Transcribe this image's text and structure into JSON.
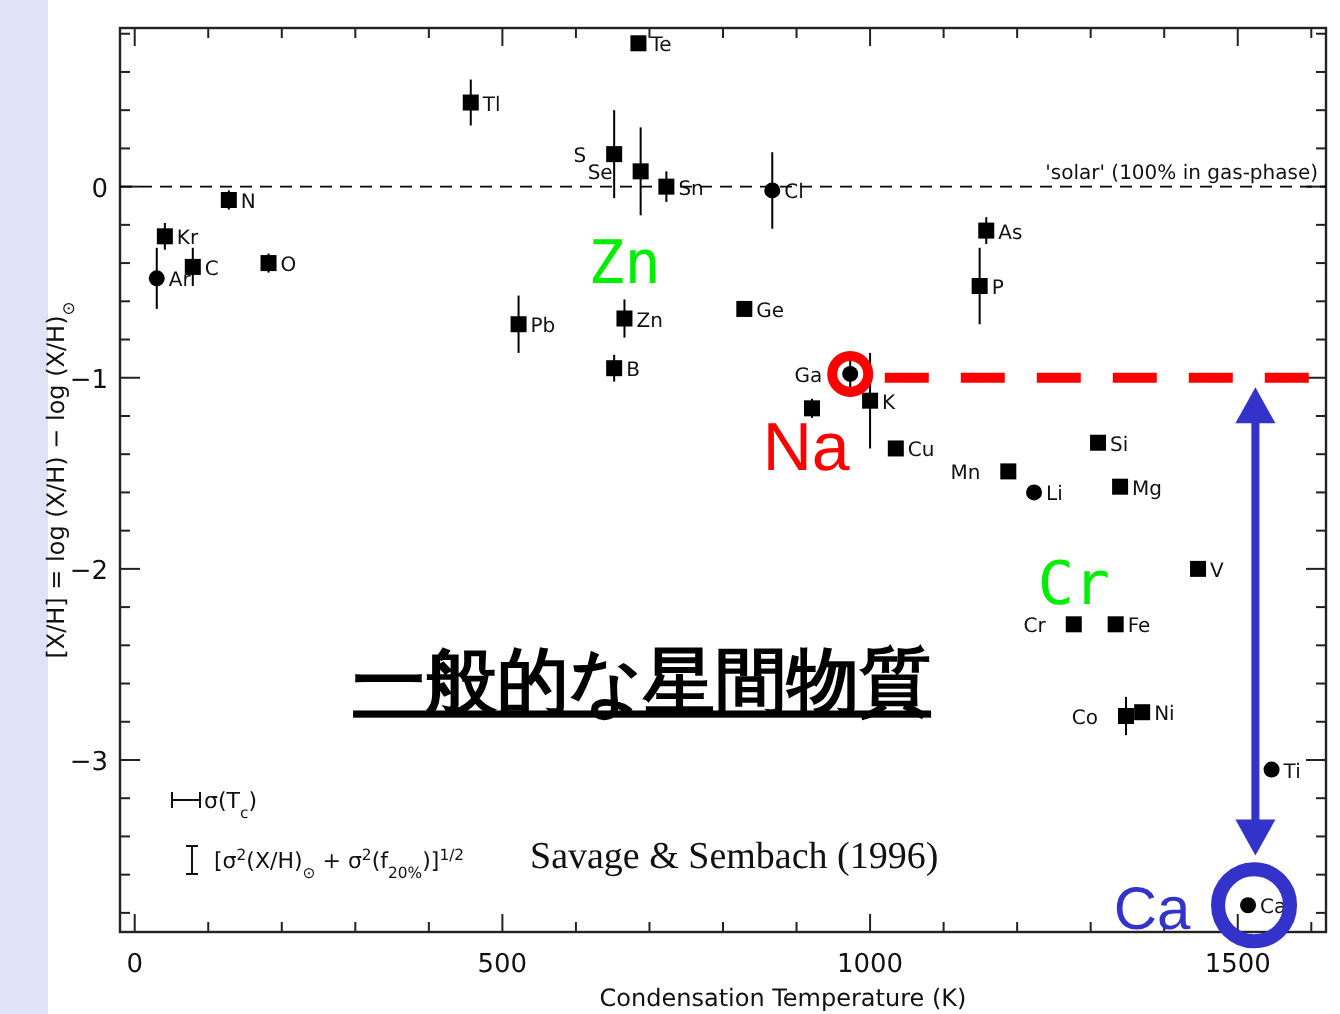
{
  "chart_data": {
    "type": "scatter",
    "title": "一般的な星間物質",
    "xlabel": "Condensation Temperature (K)",
    "ylabel": "[X/H] = log (X/H) − log (X/H)$_{⊙}$",
    "xlim": [
      -20,
      1620
    ],
    "ylim": [
      -3.9,
      0.83
    ],
    "xticks": [
      {
        "value": 100,
        "label": null
      },
      {
        "value": 200,
        "label": null
      },
      {
        "value": 300,
        "label": null
      },
      {
        "value": 400,
        "label": null
      },
      0,
      500,
      1000,
      1500,
      {
        "value": 600,
        "label": null
      },
      {
        "value": 700,
        "label": null
      },
      {
        "value": 800,
        "label": null
      },
      {
        "value": 900,
        "label": null
      },
      {
        "value": 1100,
        "label": null
      },
      {
        "value": 1200,
        "label": null
      },
      {
        "value": 1300,
        "label": null
      },
      {
        "value": 1400,
        "label": null
      },
      {
        "value": 1600,
        "label": null
      }
    ],
    "yticks": [
      -3,
      -2,
      -1,
      0,
      {
        "value": -3.8,
        "label": null
      },
      {
        "value": -3.6,
        "label": null
      },
      {
        "value": -3.4,
        "label": null
      },
      {
        "value": -3.2,
        "label": null
      },
      {
        "value": -2.8,
        "label": null
      },
      {
        "value": -2.6,
        "label": null
      },
      {
        "value": -2.4,
        "label": null
      },
      {
        "value": -2.2,
        "label": null
      },
      {
        "value": -1.8,
        "label": null
      },
      {
        "value": -1.6,
        "label": null
      },
      {
        "value": -1.4,
        "label": null
      },
      {
        "value": -1.2,
        "label": null
      },
      {
        "value": -0.8,
        "label": null
      },
      {
        "value": -0.6,
        "label": null
      },
      {
        "value": -0.4,
        "label": null
      },
      {
        "value": -0.2,
        "label": null
      },
      {
        "value": 0.2,
        "label": null
      },
      {
        "value": 0.4,
        "label": null
      },
      {
        "value": 0.6,
        "label": null
      },
      {
        "value": 0.8,
        "label": null
      }
    ],
    "series": [
      {
        "marker": "square",
        "color": "#000000",
        "x": [
          685,
          457,
          652,
          688,
          723,
          128,
          41,
          79,
          182,
          522,
          666,
          652,
          829,
          1158,
          1149,
          1000,
          921,
          1035,
          1188,
          1310,
          1340,
          1446,
          1277,
          1334,
          1348,
          1370
        ],
        "values": [
          0.75,
          0.44,
          0.17,
          0.08,
          0.0,
          -0.07,
          -0.26,
          -0.42,
          -0.4,
          -0.72,
          -0.69,
          -0.95,
          -0.64,
          -0.23,
          -0.52,
          -1.12,
          -1.16,
          -1.37,
          -1.49,
          -1.34,
          -1.57,
          -2.0,
          -2.29,
          -2.29,
          -2.77,
          -2.75
        ],
        "errors": [
          null,
          0.12,
          0.23,
          0.23,
          0.08,
          0.05,
          0.07,
          0.1,
          0.05,
          0.15,
          0.1,
          0.07,
          null,
          0.07,
          0.2,
          0.25,
          0.05,
          null,
          null,
          null,
          null,
          null,
          null,
          null,
          0.1,
          null
        ],
        "value_labels": [
          "Te",
          "Tl",
          "S",
          "Se",
          "Sn",
          "N",
          "Kr",
          "C",
          "O",
          "Pb",
          "Zn",
          "B",
          "Ge",
          "As",
          "P",
          "K",
          null,
          "Cu",
          "Mn",
          "Si",
          "Mg",
          "V",
          "Cr",
          "Fe",
          "Co",
          "Ni"
        ]
      },
      {
        "marker": "circle",
        "color": "#000000",
        "x": [
          30,
          867,
          973,
          1223,
          1546,
          1514
        ],
        "values": [
          -0.48,
          -0.02,
          -0.98,
          -1.6,
          -3.05,
          -3.76
        ],
        "errors": [
          0.16,
          0.2,
          0.08,
          null,
          null,
          null
        ],
        "value_labels": [
          "Ar",
          "Cl",
          "Ga",
          "Li",
          "Ti",
          "Ca"
        ]
      },
      {
        "type": "line",
        "color": "#ff0000",
        "line_style": "dashed",
        "marker": "none",
        "x": [
          1020,
          1600
        ],
        "values": [
          -1.0,
          -1.0
        ]
      }
    ],
    "ref_lines": [
      {
        "axis": "y",
        "value": 0,
        "label": "'solar' (100% in gas-phase)",
        "line_style": "dashed",
        "color": "#000000"
      }
    ],
    "annotations": [
      {
        "text": "Zn",
        "x": 666,
        "y": -0.69
      },
      {
        "text": "Na",
        "x": 973,
        "y": -0.98
      },
      {
        "text": "Cr",
        "x": 1277,
        "y": -2.29
      },
      {
        "text": "Ca",
        "x": 1514,
        "y": -3.76
      },
      "σ(T$_{c}$)",
      "[σ$^{2}$(X/H)$_{⊙}$ + σ$^{2}$(f$_{20%}$)]$^{1/2}$",
      "Savage & Sembach (1996)"
    ]
  }
}
